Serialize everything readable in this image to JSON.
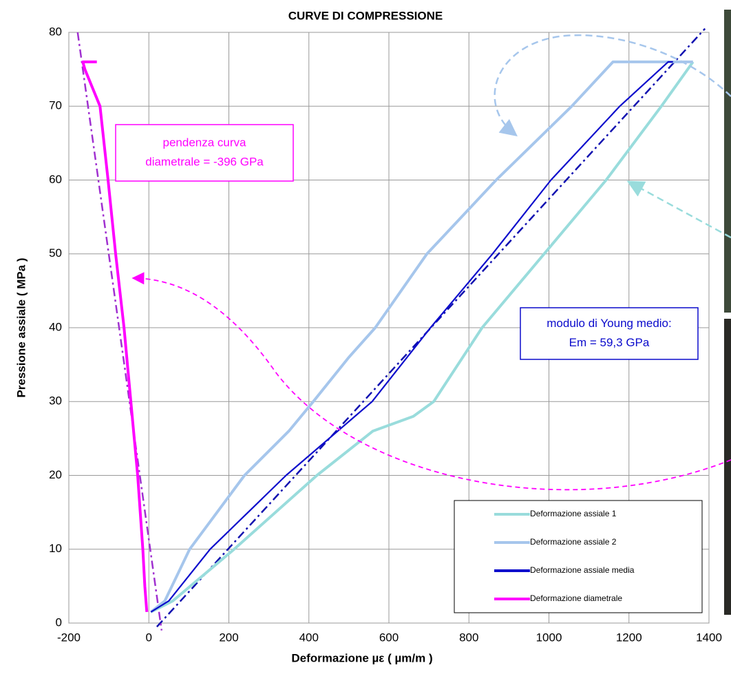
{
  "chart_data": {
    "type": "line",
    "title": "CURVE DI COMPRESSIONE",
    "x_label": "Deformazione  µε ( µm/m )",
    "y_label": "Pressione assiale   ( MPa )",
    "xlim": [
      -200,
      1400
    ],
    "ylim": [
      0,
      80
    ],
    "xticks": [
      -200,
      0,
      200,
      400,
      600,
      800,
      1000,
      1200,
      1400
    ],
    "yticks": [
      0,
      10,
      20,
      30,
      40,
      50,
      60,
      70,
      80
    ],
    "grid": true,
    "legend": "lower right",
    "series": [
      {
        "name": "Deformazione assiale 1",
        "color": "#99dcdc",
        "x": [
          5,
          60,
          213,
          420,
          560,
          661,
          712,
          833,
          988,
          1143,
          1281,
          1360
        ],
        "values": [
          1.5,
          3,
          10,
          20,
          26,
          28,
          30,
          40,
          50,
          60,
          70,
          76
        ]
      },
      {
        "name": "Deformazione assiale 2",
        "color": "#a6c6ec",
        "x": [
          5,
          40,
          102,
          239,
          350,
          411,
          500,
          566,
          695,
          868,
          1057,
          1160,
          1360
        ],
        "values": [
          1.5,
          3,
          10,
          20,
          26,
          30,
          36,
          40,
          50,
          60,
          70,
          76,
          76
        ]
      },
      {
        "name": "Deformazione assiale media",
        "color": "#0a0acc",
        "x": [
          5,
          50,
          153,
          343,
          558,
          704,
          859,
          1005,
          1177,
          1298,
          1310
        ],
        "values": [
          1.5,
          3,
          10,
          20,
          30,
          40,
          50,
          60,
          70,
          76,
          76
        ]
      },
      {
        "name": "Deformazione diametrale",
        "color": "#ff00ff",
        "x": [
          -5,
          -10,
          -15,
          -28,
          -45,
          -62,
          -83,
          -102,
          -122,
          -160,
          -165,
          -130
        ],
        "values": [
          1.5,
          5,
          10,
          20,
          30,
          40,
          50,
          60,
          70,
          75,
          76,
          76
        ]
      }
    ],
    "fit_lines": [
      {
        "color": "#1010b0",
        "x": [
          20,
          1390
        ],
        "values": [
          -0.5,
          80.5
        ]
      },
      {
        "color": "#a030d0",
        "x": [
          -178,
          32
        ],
        "values": [
          80,
          -1
        ]
      }
    ],
    "annotations": [
      {
        "color": "#ff00ff",
        "lines": [
          "pendenza curva",
          "diametrale = -396 GPa"
        ]
      },
      {
        "color": "#0a0acc",
        "lines": [
          "modulo di Young medio:",
          "Em =  59,3 GPa"
        ]
      }
    ]
  }
}
